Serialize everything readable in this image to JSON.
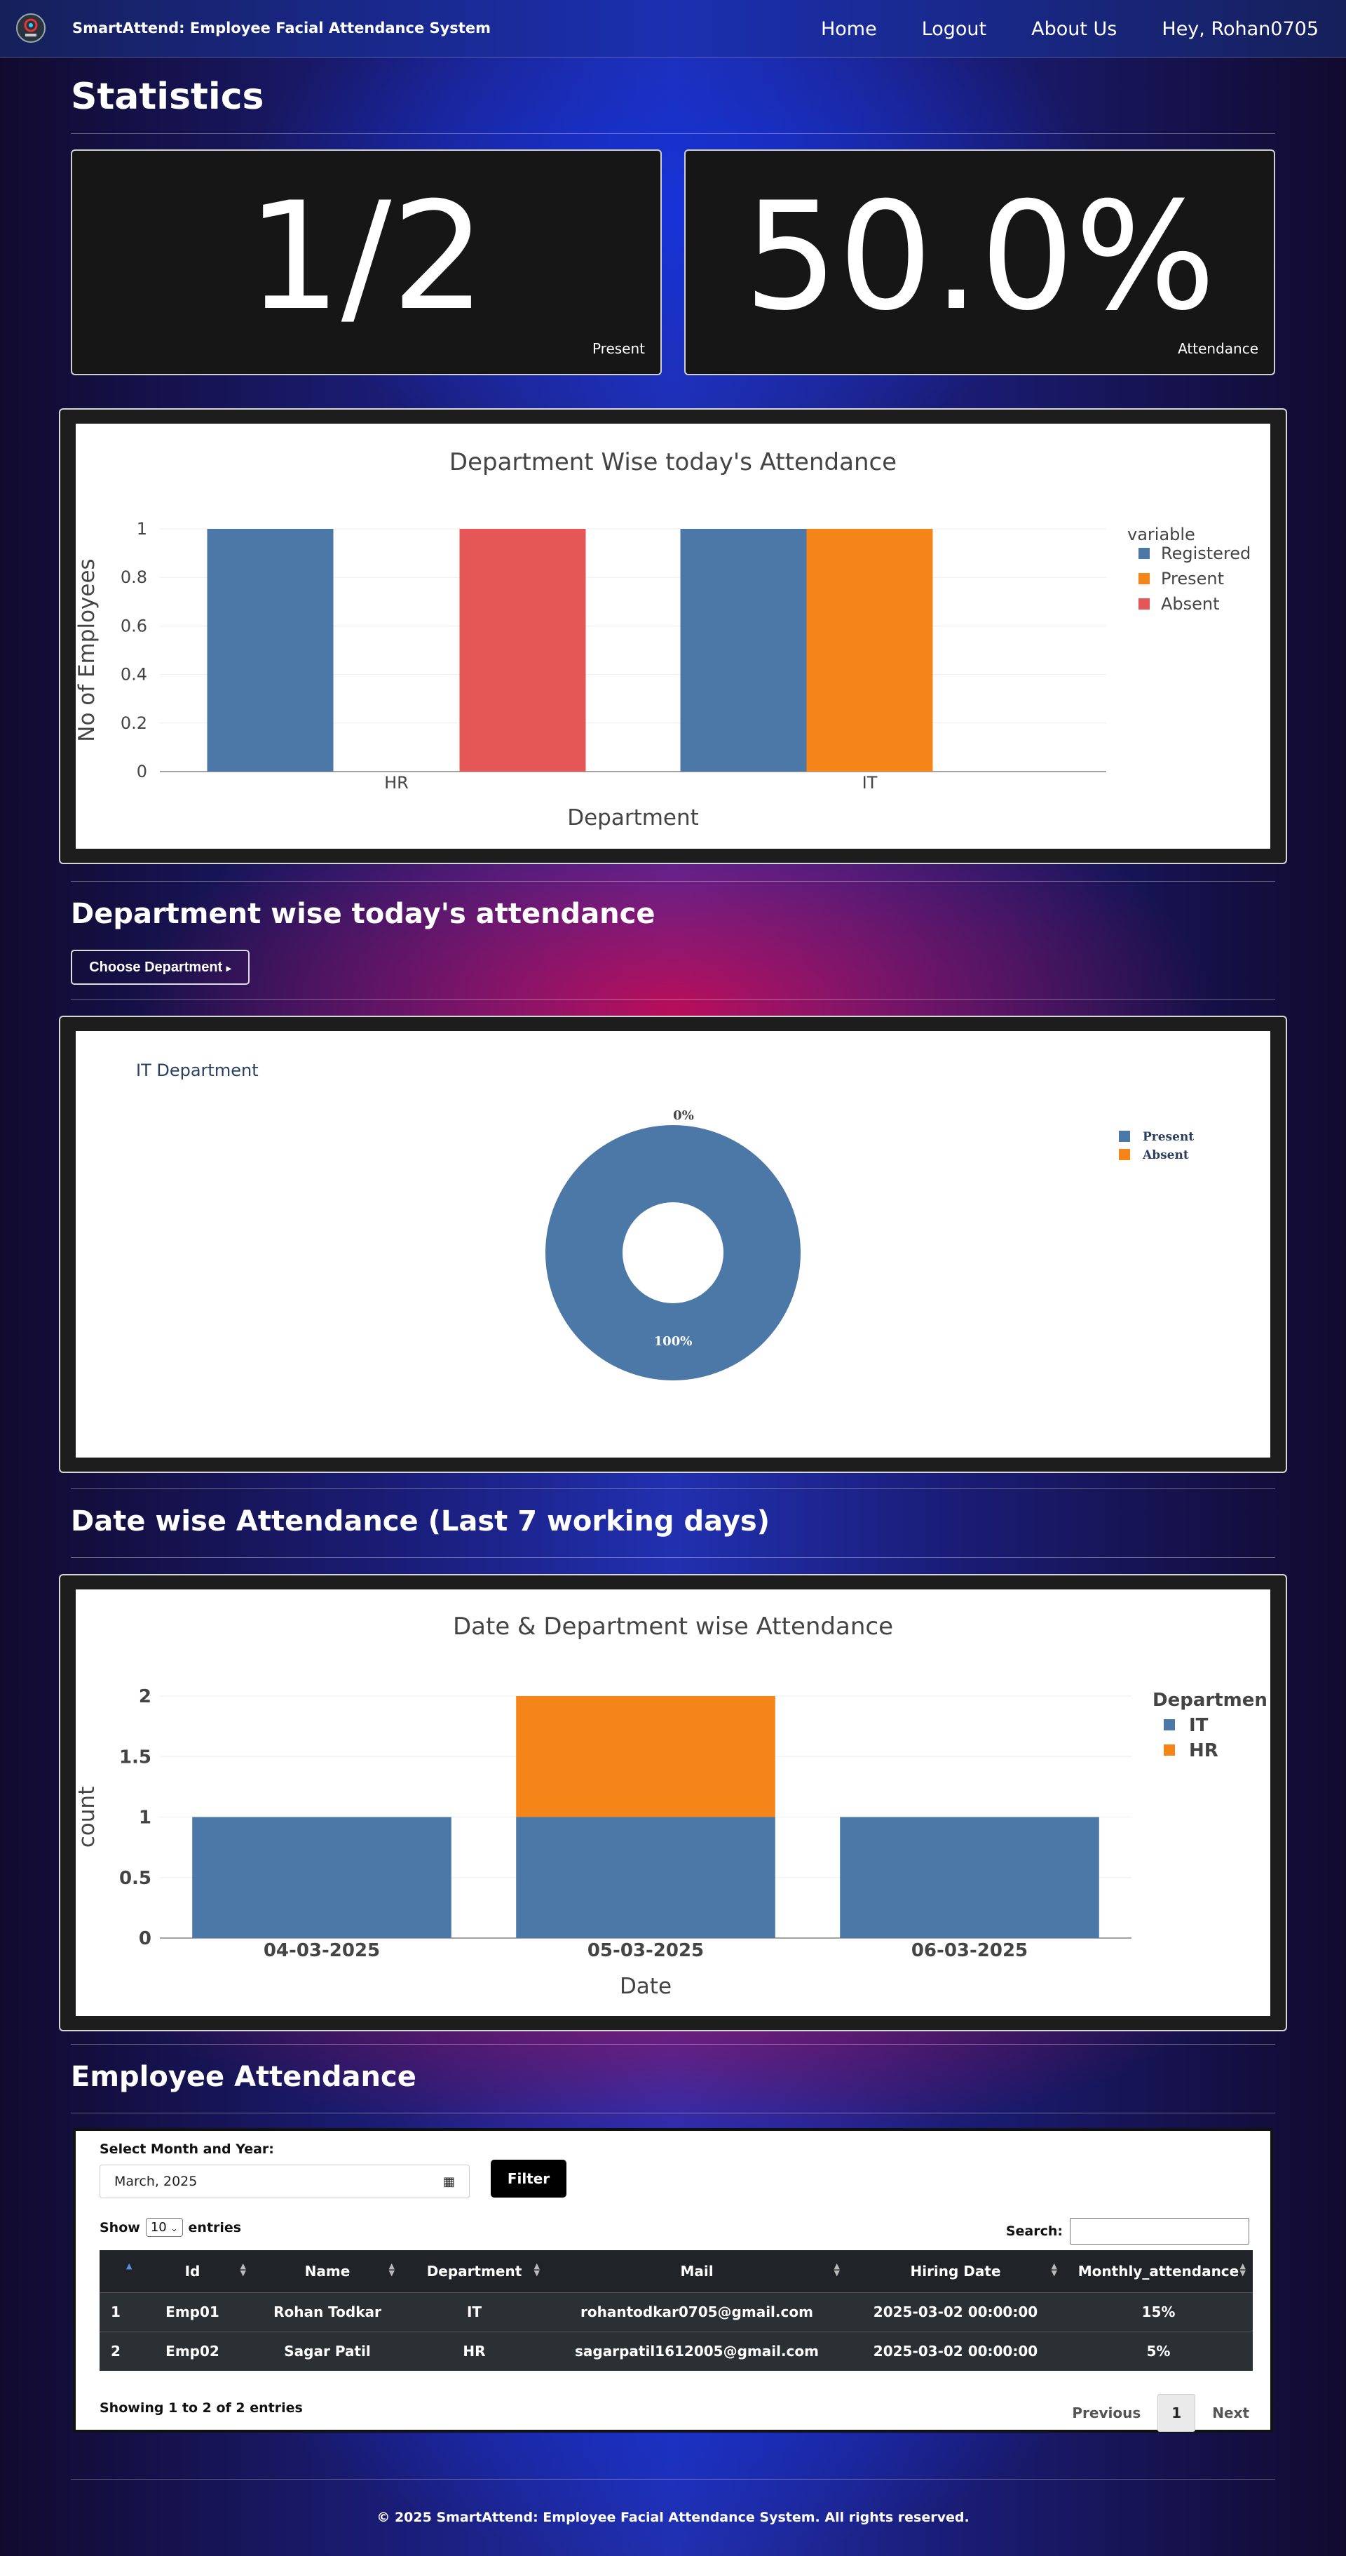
{
  "nav": {
    "brand": "SmartAttend: Employee Facial Attendance System",
    "links": [
      "Home",
      "Logout",
      "About Us",
      "Hey, Rohan0705"
    ]
  },
  "statistics": {
    "title": "Statistics",
    "present_value": "1/2",
    "present_label": "Present",
    "attendance_value": "50.0%",
    "attendance_label": "Attendance"
  },
  "dept_section": {
    "title": "Department wise today's attendance",
    "choose_button": "Choose Department"
  },
  "date_section": {
    "title": "Date wise Attendance (Last 7 working days)"
  },
  "employee_section": {
    "title": "Employee Attendance",
    "select_label": "Select Month and Year:",
    "month_value": "March, 2025",
    "filter_button": "Filter",
    "show_label": "Show",
    "entries_value": "10",
    "entries_label": "entries",
    "search_label": "Search:",
    "columns": [
      "",
      "Id",
      "Name",
      "Department",
      "Mail",
      "Hiring Date",
      "Monthly_attendance"
    ],
    "rows": [
      [
        "1",
        "Emp01",
        "Rohan Todkar",
        "IT",
        "rohantodkar0705@gmail.com",
        "2025-03-02 00:00:00",
        "15%"
      ],
      [
        "2",
        "Emp02",
        "Sagar Patil",
        "HR",
        "sagarpatil1612005@gmail.com",
        "2025-03-02 00:00:00",
        "5%"
      ]
    ],
    "showing": "Showing 1 to 2 of 2 entries",
    "prev": "Previous",
    "page": "1",
    "next": "Next"
  },
  "footer": "© 2025 SmartAttend: Employee Facial Attendance System. All rights reserved.",
  "colors": {
    "blue": "#4c78a8",
    "orange": "#f58518",
    "red": "#e45756"
  },
  "chart_data": [
    {
      "type": "bar",
      "title": "Department Wise today's Attendance",
      "xlabel": "Department",
      "ylabel": "No of Employees",
      "legend_title": "variable",
      "categories": [
        "HR",
        "IT"
      ],
      "series": [
        {
          "name": "Registered",
          "values": [
            1,
            1
          ]
        },
        {
          "name": "Present",
          "values": [
            0,
            1
          ]
        },
        {
          "name": "Absent",
          "values": [
            1,
            0
          ]
        }
      ],
      "ylim": [
        0,
        1
      ],
      "yticks": [
        "0",
        "0.2",
        "0.4",
        "0.6",
        "0.8",
        "1"
      ],
      "legend": "right"
    },
    {
      "type": "pie",
      "title": "IT Department",
      "labels": [
        "Present",
        "Absent"
      ],
      "values": [
        100,
        0
      ],
      "slice_labels": [
        "100%",
        "0%"
      ],
      "hole": true,
      "legend": "top-right"
    },
    {
      "type": "bar",
      "stacked": true,
      "title": "Date & Department wise Attendance",
      "xlabel": "Date",
      "ylabel": "count",
      "legend_title": "Departmen",
      "categories": [
        "04-03-2025",
        "05-03-2025",
        "06-03-2025"
      ],
      "series": [
        {
          "name": "IT",
          "values": [
            1,
            1,
            1
          ]
        },
        {
          "name": "HR",
          "values": [
            0,
            1,
            0
          ]
        }
      ],
      "ylim": [
        0,
        2
      ],
      "yticks": [
        "0",
        "0.5",
        "1",
        "1.5",
        "2"
      ],
      "legend": "right"
    }
  ]
}
